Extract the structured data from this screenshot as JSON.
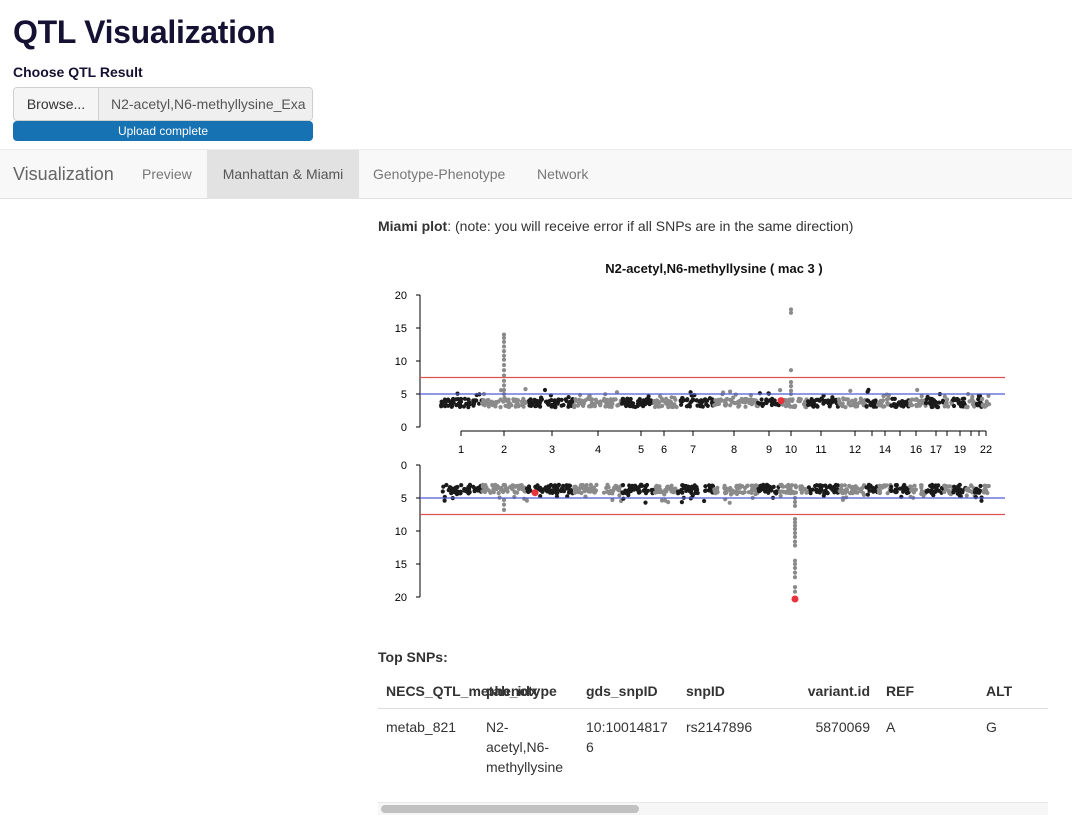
{
  "app": {
    "title": "QTL Visualization"
  },
  "upload": {
    "label": "Choose QTL Result",
    "browse_label": "Browse...",
    "file_name": "N2-acetyl,N6-methyllysine_Exa",
    "status": "Upload complete",
    "progress": 1.0
  },
  "nav": {
    "brand": "Visualization",
    "tabs": [
      {
        "label": "Preview",
        "active": false
      },
      {
        "label": "Manhattan & Miami",
        "active": true
      },
      {
        "label": "Genotype-Phenotype",
        "active": false
      },
      {
        "label": "Network",
        "active": false
      }
    ]
  },
  "miami": {
    "caption_bold": "Miami plot",
    "caption_rest": ": (note: you will receive error if all SNPs are in the same direction)"
  },
  "chart_data": {
    "type": "scatter",
    "title": "N2-acetyl,N6-methyllysine ( mac 3 )",
    "top_panel": {
      "ylim": [
        0,
        20
      ],
      "yticks": [
        "0",
        "5",
        "10",
        "15",
        "20"
      ],
      "thresholds": [
        {
          "value": 5,
          "color": "#4f5bd5"
        },
        {
          "value": 7.5,
          "color": "#d9534f"
        }
      ],
      "peaks": [
        {
          "chromosome": "2",
          "max_value": 14
        },
        {
          "chromosome": "10",
          "max_value": 17.8
        }
      ],
      "highlight": {
        "chromosome": "9",
        "value": 4,
        "color": "#e8323c"
      }
    },
    "bottom_panel": {
      "ylim": [
        0,
        20
      ],
      "inverted": true,
      "yticks": [
        "0",
        "5",
        "10",
        "15",
        "20"
      ],
      "thresholds": [
        {
          "value": 5,
          "color": "#4f5bd5"
        },
        {
          "value": 7.5,
          "color": "#d9534f"
        }
      ],
      "peaks": [
        {
          "chromosome": "10",
          "max_value": 20.3
        }
      ],
      "highlights": [
        {
          "chromosome": "2",
          "value": 4.2,
          "color": "#e8323c"
        },
        {
          "chromosome": "10",
          "value": 20.3,
          "color": "#e8323c"
        }
      ]
    },
    "chromosomes": [
      "1",
      "2",
      "3",
      "4",
      "5",
      "6",
      "7",
      "8",
      "9",
      "10",
      "11",
      "12",
      "13",
      "14",
      "15",
      "16",
      "17",
      "18",
      "19",
      "20",
      "21",
      "22"
    ],
    "chromosome_labels": [
      "1",
      "2",
      "3",
      "4",
      "5",
      "6",
      "7",
      "8",
      "9",
      "10",
      "11",
      "12",
      "",
      "14",
      "",
      "16",
      "17",
      "",
      "19",
      "",
      "",
      "22"
    ],
    "colors": {
      "odd": "#1a1a1a",
      "even": "#8a8a8a"
    }
  },
  "top_snps": {
    "label": "Top SNPs:",
    "columns": [
      "NECS_QTL_metab_idx",
      "phenotype",
      "gds_snpID",
      "snpID",
      "variant.id",
      "REF",
      "ALT"
    ],
    "rows": [
      [
        "metab_821",
        "N2-acetyl,N6-methyllysine",
        "10:100148176",
        "rs2147896",
        "5870069",
        "A",
        "G"
      ]
    ]
  }
}
